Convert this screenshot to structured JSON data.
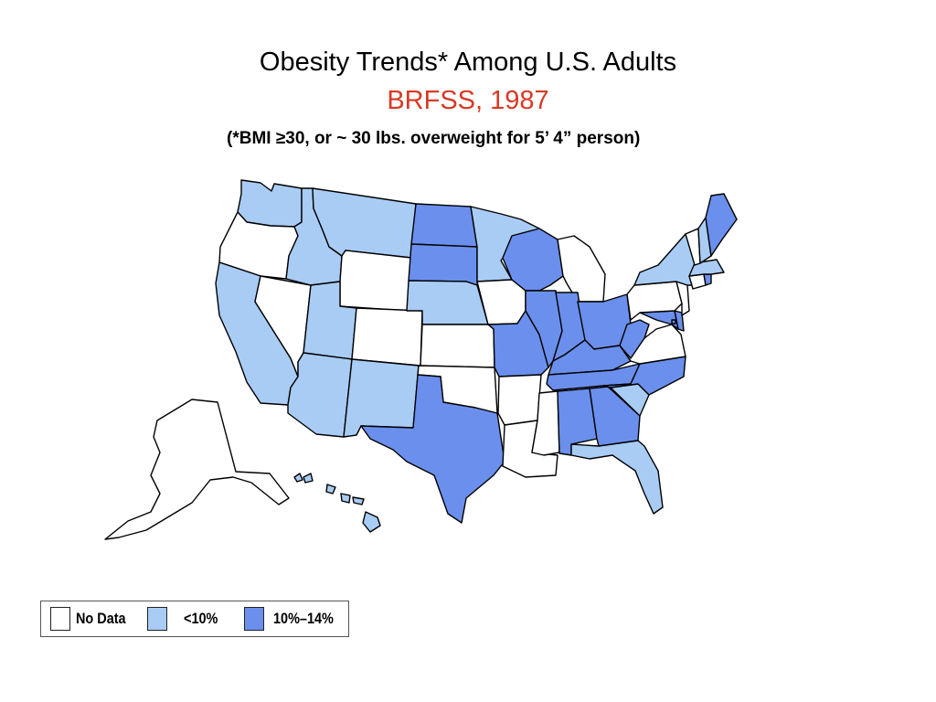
{
  "title": "Obesity Trends* Among U.S. Adults",
  "subtitle": "BRFSS, 1987",
  "note": "(*BMI ≥30, or ~ 30 lbs. overweight for 5’ 4” person)",
  "colors": {
    "subtitle": "#d73a26",
    "no_data": "#ffffff",
    "under_10": "#a9ccf5",
    "10_14": "#6b8fec",
    "border": "#000000"
  },
  "legend": [
    {
      "key": "no_data",
      "label": "No Data"
    },
    {
      "key": "under_10",
      "label": "<10%"
    },
    {
      "key": "10_14",
      "label": "10%–14%"
    }
  ],
  "states": {
    "WA": "under_10",
    "OR": "no_data",
    "CA": "under_10",
    "NV": "no_data",
    "ID": "under_10",
    "MT": "under_10",
    "WY": "no_data",
    "UT": "under_10",
    "AZ": "under_10",
    "CO": "no_data",
    "NM": "under_10",
    "ND": "10_14",
    "SD": "10_14",
    "NE": "under_10",
    "KS": "no_data",
    "OK": "no_data",
    "TX": "10_14",
    "MN": "under_10",
    "IA": "no_data",
    "MO": "10_14",
    "AR": "no_data",
    "LA": "no_data",
    "WI": "10_14",
    "IL": "10_14",
    "MI": "no_data",
    "IN": "10_14",
    "OH": "10_14",
    "KY": "10_14",
    "TN": "10_14",
    "MS": "no_data",
    "AL": "10_14",
    "GA": "10_14",
    "FL": "under_10",
    "SC": "under_10",
    "NC": "10_14",
    "VA": "no_data",
    "WV": "10_14",
    "MD": "10_14",
    "DE": "10_14",
    "DC": "10_14",
    "PA": "no_data",
    "NJ": "no_data",
    "NY": "under_10",
    "CT": "no_data",
    "RI": "10_14",
    "MA": "under_10",
    "VT": "no_data",
    "NH": "under_10",
    "ME": "10_14",
    "AK": "no_data",
    "HI": "under_10"
  }
}
